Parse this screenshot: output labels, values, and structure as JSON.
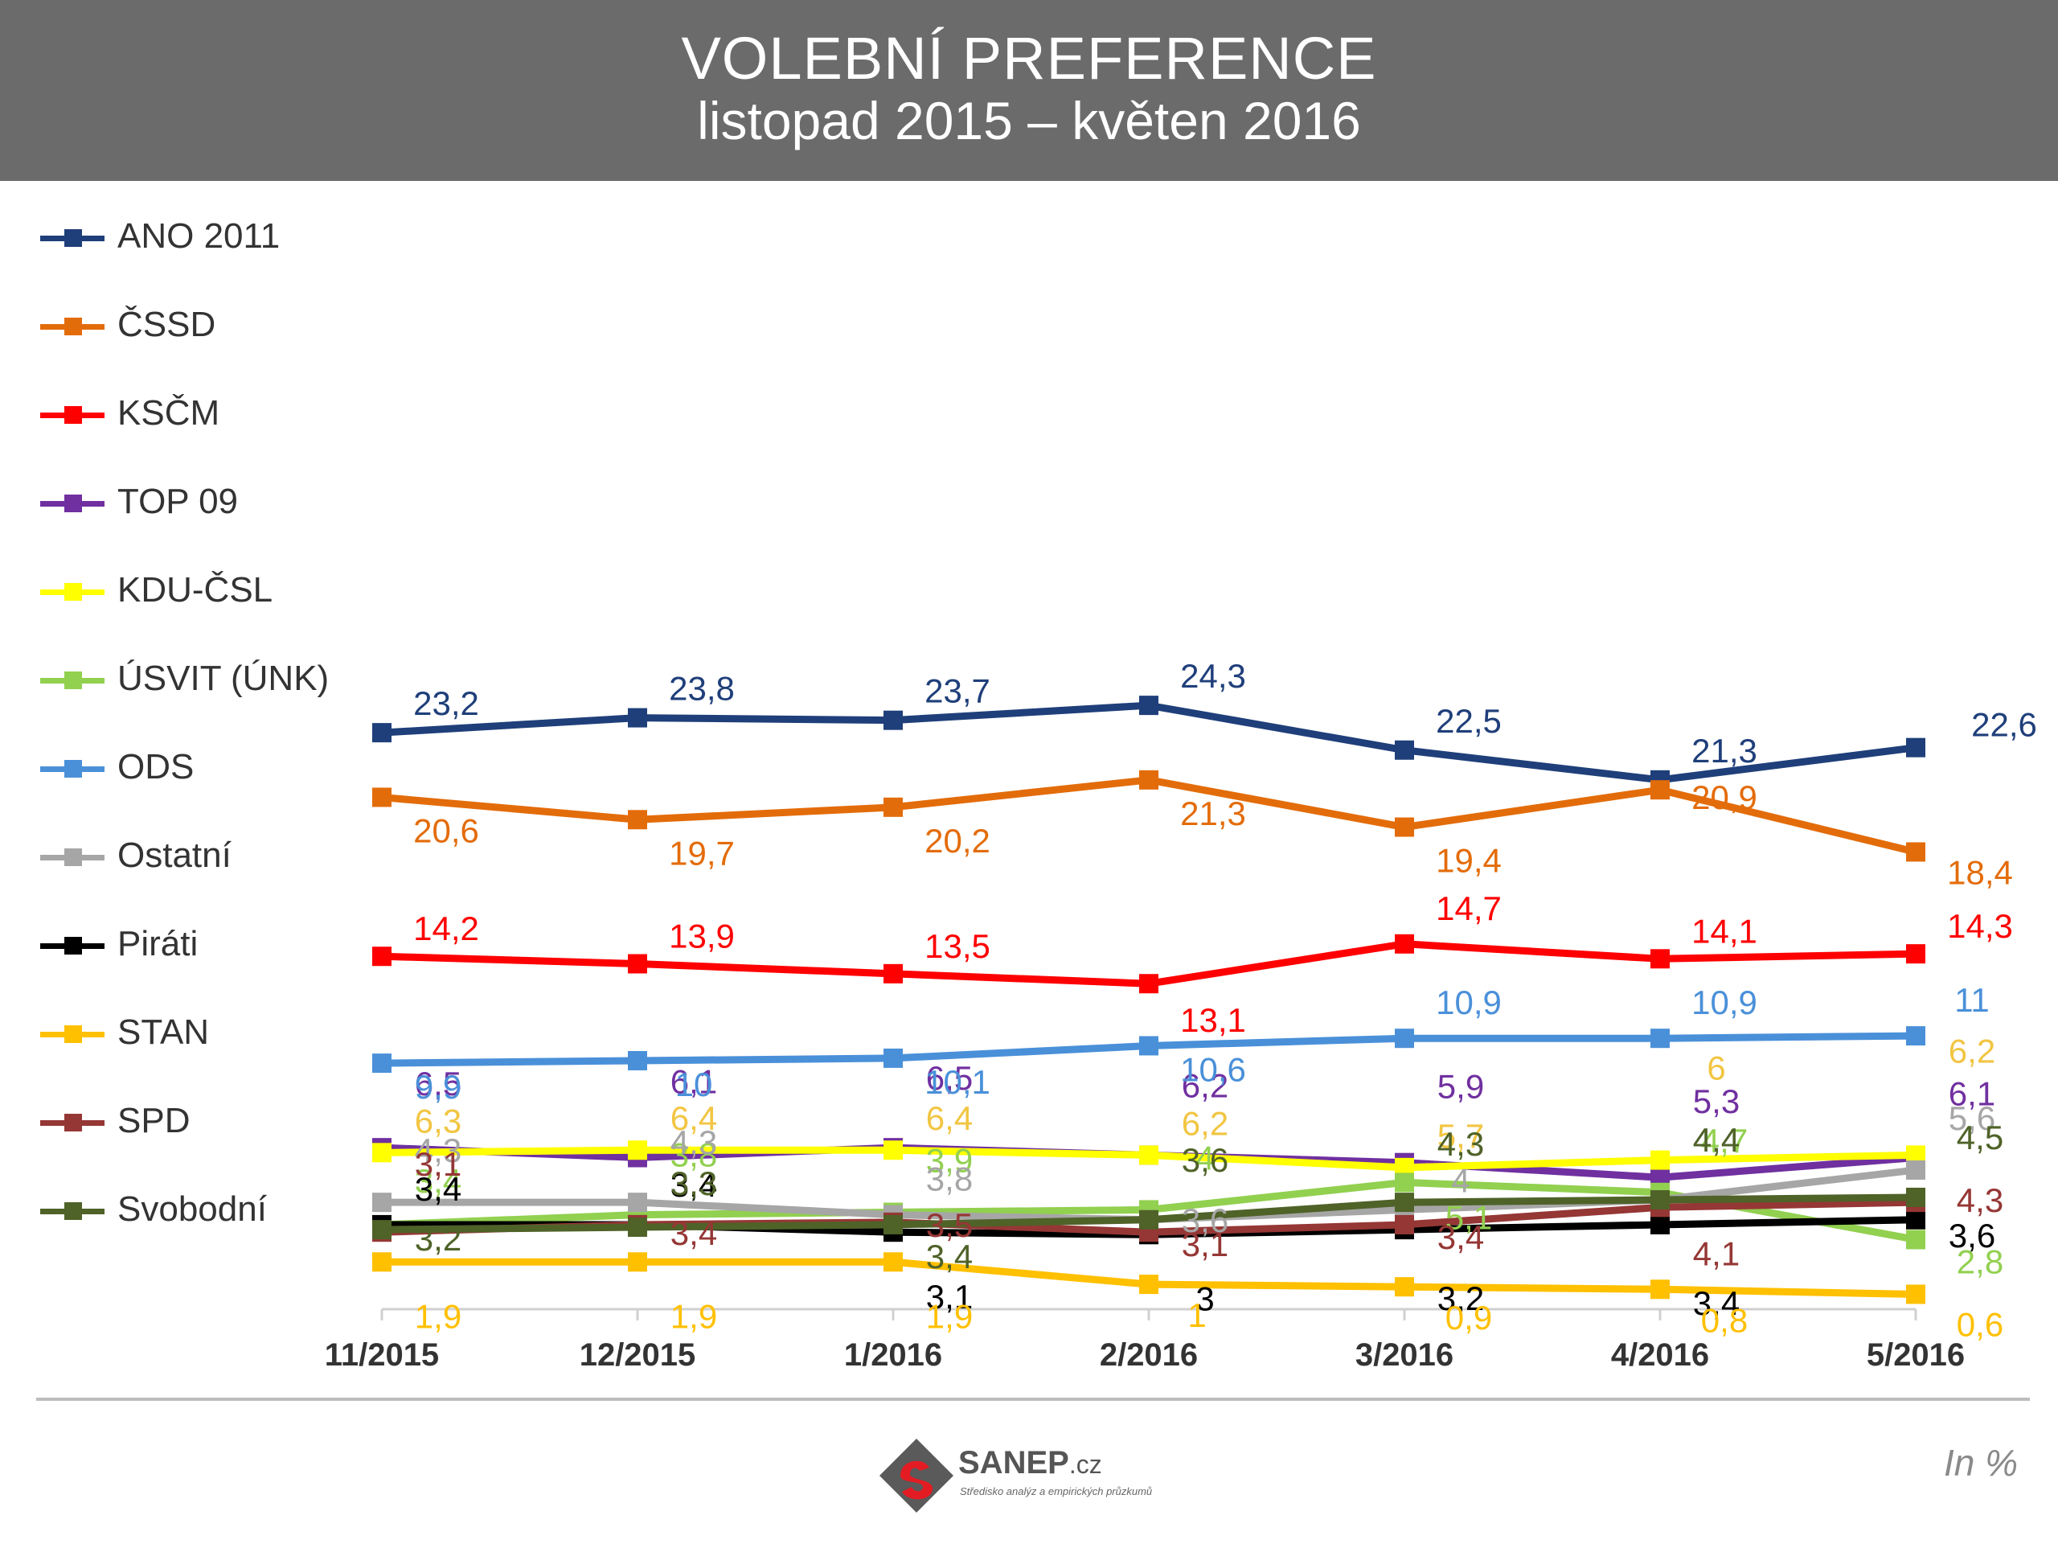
{
  "header": {
    "title": "VOLEBNÍ PREFERENCE",
    "subtitle": "listopad 2015 – květen 2016"
  },
  "footer": {
    "logo_name": "SANEP",
    "logo_suffix": ".cz",
    "logo_tagline": "Středisko analýz a empirických průzkumů",
    "unit_note": "In %"
  },
  "chart_data": {
    "type": "line",
    "title": "VOLEBNÍ PREFERENCE",
    "subtitle": "listopad 2015 – květen 2016",
    "xlabel": "",
    "ylabel": "",
    "unit": "In %",
    "categories": [
      "11/2015",
      "12/2015",
      "1/2016",
      "2/2016",
      "3/2016",
      "4/2016",
      "5/2016"
    ],
    "ylim": [
      0,
      27
    ],
    "grid": false,
    "legend_position": "left",
    "series": [
      {
        "name": "ANO 2011",
        "color": "#1f3f7a",
        "values": [
          23.2,
          23.8,
          23.7,
          24.3,
          22.5,
          21.3,
          22.6
        ],
        "labels": [
          "23,2",
          "23,8",
          "23,7",
          "24,3",
          "22,5",
          "21,3",
          "22,6"
        ]
      },
      {
        "name": "ČSSD",
        "color": "#e36c0a",
        "values": [
          20.6,
          19.7,
          20.2,
          21.3,
          19.4,
          20.9,
          18.4
        ],
        "labels": [
          "20,6",
          "19,7",
          "20,2",
          "21,3",
          "19,4",
          "20,9",
          "18,4"
        ]
      },
      {
        "name": "KSČM",
        "color": "#ff0000",
        "values": [
          14.2,
          13.9,
          13.5,
          13.1,
          14.7,
          14.1,
          14.3
        ],
        "labels": [
          "14,2",
          "13,9",
          "13,5",
          "13,1",
          "14,7",
          "14,1",
          "14,3"
        ]
      },
      {
        "name": "TOP 09",
        "color": "#7030a0",
        "values": [
          6.5,
          6.1,
          6.5,
          6.2,
          5.9,
          5.3,
          6.1
        ],
        "labels": [
          "6,5",
          "6,1",
          "6,5",
          "6,2",
          "5,9",
          "5,3",
          "6,1"
        ]
      },
      {
        "name": "KDU-ČSL",
        "color": "#ffff00",
        "values": [
          6.3,
          6.4,
          6.4,
          6.2,
          5.7,
          6,
          6.2
        ],
        "labels": [
          "6,3",
          "6,4",
          "6,4",
          "6,2",
          "5,7",
          "6",
          "6,2"
        ]
      },
      {
        "name": "ÚSVIT (ÚNK)",
        "color": "#92d050",
        "values": [
          3.4,
          3.8,
          3.9,
          4,
          5.1,
          4.7,
          2.8
        ],
        "labels": [
          "3,4",
          "3,8",
          "3,9",
          "4",
          "5,1",
          "4,7",
          "2,8"
        ]
      },
      {
        "name": "ODS",
        "color": "#4a90d9",
        "values": [
          9.9,
          10,
          10.1,
          10.6,
          10.9,
          10.9,
          11
        ],
        "labels": [
          "9,9",
          "10",
          "10,1",
          "10,6",
          "10,9",
          "10,9",
          "11"
        ]
      },
      {
        "name": "Ostatní",
        "color": "#a6a6a6",
        "values": [
          4.3,
          4.3,
          3.8,
          3.6,
          4,
          4.4,
          5.6
        ],
        "labels": [
          "4,3",
          "4,3",
          "3,8",
          "3,6",
          "4",
          "4,4",
          "5,6"
        ]
      },
      {
        "name": "Piráti",
        "color": "#000000",
        "values": [
          3.4,
          3.4,
          3.1,
          3,
          3.2,
          3.4,
          3.6
        ],
        "labels": [
          "3,4",
          "3,4",
          "3,1",
          "3",
          "3,2",
          "3,4",
          "3,6"
        ]
      },
      {
        "name": "STAN",
        "color": "#ffc000",
        "values": [
          1.9,
          1.9,
          1.9,
          1,
          0.9,
          0.8,
          0.6
        ],
        "labels": [
          "1,9",
          "1,9",
          "1,9",
          "1",
          "0,9",
          "0,8",
          "0,6"
        ]
      },
      {
        "name": "SPD",
        "color": "#953735",
        "values": [
          3.1,
          3.4,
          3.5,
          3.1,
          3.4,
          4.1,
          4.3
        ],
        "labels": [
          "3,1",
          "3,4",
          "3,5",
          "3,1",
          "3,4",
          "4,1",
          "4,3"
        ]
      },
      {
        "name": "Svobodní",
        "color": "#4f6228",
        "values": [
          3.2,
          3.3,
          3.4,
          3.6,
          4.3,
          4.4,
          4.5
        ],
        "labels": [
          "3,2",
          "3,3",
          "3,4",
          "3,6",
          "4,3",
          "4,4",
          "4,5"
        ]
      }
    ]
  }
}
